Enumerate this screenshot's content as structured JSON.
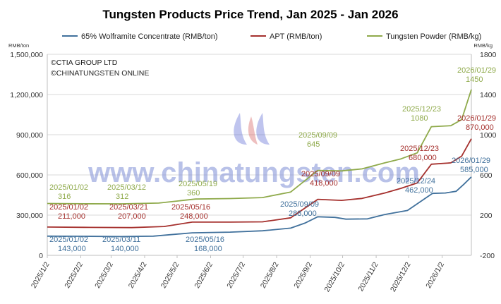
{
  "chart_data": {
    "type": "line",
    "title": "Tungsten Products Price Trend, Jan 2025 - Jan 2026",
    "left_axis_unit": "RMB/ton",
    "right_axis_unit": "RMB/kg",
    "left_axis": {
      "ylim": [
        0,
        1500000
      ],
      "ticks": [
        "0",
        "300,000",
        "600,000",
        "900,000",
        "1,200,000",
        "1,500,000"
      ]
    },
    "right_axis": {
      "ylim": [
        -200,
        1800
      ],
      "ticks": [
        "-200",
        "200",
        "600",
        "1000",
        "1400",
        "1800"
      ]
    },
    "x_ticks": [
      "2025/1/2",
      "2025/2/2",
      "2025/3/2",
      "2025/4/2",
      "2025/5/2",
      "2025/6/2",
      "2025/7/2",
      "2025/8/2",
      "2025/9/2",
      "2025/10/2",
      "2025/11/2",
      "2025/12/2",
      "2026/1/2"
    ],
    "xlim": [
      "2025-01-02",
      "2026-01-29"
    ],
    "grid": "horizontal",
    "legend_position": "top",
    "watermark_text": [
      "©CTIA GROUP LTD",
      "©CHINATUNGSTEN ONLINE"
    ],
    "watermark_url": "www.chinatungsten.com",
    "series": [
      {
        "name": "65% Wolframite Concentrate (RMB/ton)",
        "axis": "left",
        "color": "#41719C",
        "points": [
          [
            "2025-01-02",
            143000
          ],
          [
            "2025-02-05",
            142000
          ],
          [
            "2025-03-11",
            140000
          ],
          [
            "2025-04-10",
            143000
          ],
          [
            "2025-05-16",
            168000
          ],
          [
            "2025-06-20",
            173000
          ],
          [
            "2025-07-20",
            183000
          ],
          [
            "2025-08-15",
            203000
          ],
          [
            "2025-08-28",
            240000
          ],
          [
            "2025-09-09",
            288000
          ],
          [
            "2025-09-25",
            283000
          ],
          [
            "2025-10-05",
            270000
          ],
          [
            "2025-10-25",
            272000
          ],
          [
            "2025-11-10",
            305000
          ],
          [
            "2025-12-01",
            335000
          ],
          [
            "2025-12-24",
            462000
          ],
          [
            "2026-01-05",
            465000
          ],
          [
            "2026-01-15",
            478000
          ],
          [
            "2026-01-22",
            530000
          ],
          [
            "2026-01-29",
            585000
          ]
        ],
        "labels": [
          {
            "date": "2025/01/02",
            "value": "143,000"
          },
          {
            "date": "2025/03/11",
            "value": "140,000"
          },
          {
            "date": "2025/05/16",
            "value": "168,000"
          },
          {
            "date": "2025/09/09",
            "value": "288,000"
          },
          {
            "date": "2025/12/24",
            "value": "462,000"
          },
          {
            "date": "2026/01/29",
            "value": "585,000"
          }
        ]
      },
      {
        "name": "APT (RMB/ton)",
        "axis": "left",
        "color": "#A5302D",
        "points": [
          [
            "2025-01-02",
            211000
          ],
          [
            "2025-02-05",
            209000
          ],
          [
            "2025-03-21",
            207000
          ],
          [
            "2025-04-20",
            215000
          ],
          [
            "2025-05-16",
            248000
          ],
          [
            "2025-06-20",
            248000
          ],
          [
            "2025-07-20",
            250000
          ],
          [
            "2025-08-15",
            280000
          ],
          [
            "2025-09-09",
            418000
          ],
          [
            "2025-10-01",
            410000
          ],
          [
            "2025-10-20",
            425000
          ],
          [
            "2025-11-10",
            465000
          ],
          [
            "2025-11-25",
            500000
          ],
          [
            "2025-12-10",
            540000
          ],
          [
            "2025-12-23",
            680000
          ],
          [
            "2026-01-10",
            690000
          ],
          [
            "2026-01-20",
            740000
          ],
          [
            "2026-01-29",
            870000
          ]
        ],
        "labels": [
          {
            "date": "2025/01/02",
            "value": "211,000"
          },
          {
            "date": "2025/03/21",
            "value": "207,000"
          },
          {
            "date": "2025/05/16",
            "value": "248,000"
          },
          {
            "date": "2025/09/09",
            "value": "418,000"
          },
          {
            "date": "2025/12/23",
            "value": "680,000"
          },
          {
            "date": "2026/01/29",
            "value": "870,000"
          }
        ]
      },
      {
        "name": "Tungsten Powder (RMB/kg)",
        "axis": "right",
        "color": "#8FAA4B",
        "points": [
          [
            "2025-01-02",
            316
          ],
          [
            "2025-02-05",
            313
          ],
          [
            "2025-03-12",
            312
          ],
          [
            "2025-04-15",
            320
          ],
          [
            "2025-05-19",
            360
          ],
          [
            "2025-06-20",
            365
          ],
          [
            "2025-07-20",
            375
          ],
          [
            "2025-08-15",
            430
          ],
          [
            "2025-09-09",
            645
          ],
          [
            "2025-10-01",
            640
          ],
          [
            "2025-10-20",
            660
          ],
          [
            "2025-11-10",
            720
          ],
          [
            "2025-11-25",
            760
          ],
          [
            "2025-12-10",
            820
          ],
          [
            "2025-12-23",
            1080
          ],
          [
            "2026-01-10",
            1090
          ],
          [
            "2026-01-20",
            1150
          ],
          [
            "2026-01-29",
            1450
          ]
        ],
        "labels": [
          {
            "date": "2025/01/02",
            "value": "316"
          },
          {
            "date": "2025/03/12",
            "value": "312"
          },
          {
            "date": "2025/05/19",
            "value": "360"
          },
          {
            "date": "2025/09/09",
            "value": "645"
          },
          {
            "date": "2025/12/23",
            "value": "1080"
          },
          {
            "date": "2026/01/29",
            "value": "1450"
          }
        ]
      }
    ]
  }
}
